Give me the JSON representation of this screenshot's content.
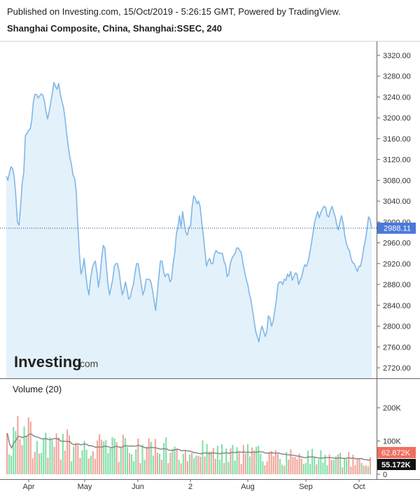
{
  "header": {
    "published_line": "Published on Investing.com, 15/Oct/2019 - 5:26:15 GMT, Powered by TradingView.",
    "symbol_line": "Shanghai Composite, China, Shanghai:SSEC, 240"
  },
  "logo": {
    "brand": "Investing",
    "suffix": ".com"
  },
  "colors": {
    "price_line": "#7fb7e8",
    "price_fill": "#e3f1fa",
    "last_price_tag": "#4a78d9",
    "volume_up": "#7ee0a8",
    "volume_down": "#f2a49a",
    "volume_ma": "#888888",
    "vol_tag_red": "#ef6f61",
    "vol_tag_black": "#111111"
  },
  "chart_data": [
    {
      "type": "area",
      "title": "Shanghai Composite, China, Shanghai:SSEC, 240",
      "x_ticks": [
        "Apr",
        "May",
        "Jun",
        "2",
        "Aug",
        "Sep",
        "Oct"
      ],
      "ylim": [
        2700,
        3340
      ],
      "y_ticks": [
        "3320.00",
        "3280.00",
        "3240.00",
        "3200.00",
        "3160.00",
        "3120.00",
        "3080.00",
        "3040.00",
        "3000.00",
        "2960.00",
        "2920.00",
        "2880.00",
        "2840.00",
        "2800.00",
        "2760.00",
        "2720.00"
      ],
      "last_price": "2988.11",
      "series": [
        {
          "values": [
            3088,
            3080,
            3095,
            3106,
            3102,
            3086,
            3050,
            3000,
            2994,
            3030,
            3075,
            3096,
            3166,
            3170,
            3176,
            3178,
            3195,
            3230,
            3245,
            3245,
            3238,
            3242,
            3246,
            3244,
            3232,
            3212,
            3198,
            3212,
            3230,
            3248,
            3268,
            3260,
            3255,
            3266,
            3245,
            3232,
            3220,
            3198,
            3170,
            3145,
            3125,
            3110,
            3090,
            3084,
            3060,
            2995,
            2940,
            2900,
            2910,
            2930,
            2900,
            2875,
            2860,
            2890,
            2910,
            2920,
            2925,
            2905,
            2875,
            2895,
            2930,
            2955,
            2950,
            2915,
            2880,
            2860,
            2875,
            2890,
            2915,
            2920,
            2920,
            2905,
            2880,
            2860,
            2870,
            2885,
            2870,
            2852,
            2855,
            2870,
            2880,
            2902,
            2920,
            2920,
            2900,
            2880,
            2860,
            2870,
            2890,
            2890,
            2890,
            2885,
            2870,
            2850,
            2830,
            2862,
            2895,
            2925,
            2925,
            2905,
            2895,
            2900,
            2900,
            2885,
            2890,
            2920,
            2940,
            2975,
            2990,
            3012,
            2990,
            3020,
            2998,
            2980,
            2975,
            2990,
            2992,
            3030,
            3050,
            3045,
            3035,
            3040,
            3030,
            3000,
            2975,
            2945,
            2915,
            2925,
            2930,
            2920,
            2920,
            2938,
            2945,
            2942,
            2940,
            2940,
            2940,
            2925,
            2918,
            2895,
            2900,
            2920,
            2930,
            2935,
            2940,
            2950,
            2950,
            2945,
            2940,
            2920,
            2905,
            2890,
            2880,
            2862,
            2850,
            2830,
            2810,
            2790,
            2780,
            2770,
            2790,
            2800,
            2790,
            2780,
            2790,
            2820,
            2815,
            2800,
            2810,
            2830,
            2850,
            2880,
            2885,
            2885,
            2880,
            2890,
            2888,
            2900,
            2895,
            2905,
            2888,
            2895,
            2902,
            2900,
            2880,
            2888,
            2895,
            2910,
            2918,
            2915,
            2925,
            2940,
            2958,
            2978,
            2998,
            3010,
            3020,
            3008,
            3018,
            3025,
            3030,
            3028,
            3012,
            3010,
            3022,
            3030,
            3020,
            3010,
            2995,
            2985,
            3000,
            3012,
            2998,
            2975,
            2960,
            2950,
            2945,
            2930,
            2922,
            2920,
            2912,
            2905,
            2915,
            2915,
            2930,
            2950,
            2965,
            2985,
            3010,
            3005,
            2988
          ]
        }
      ]
    },
    {
      "type": "bar",
      "title": "Volume (20)",
      "ylim": [
        0,
        260000
      ],
      "y_ticks": [
        "200K",
        "100K",
        "0"
      ],
      "last_volume": "55.172K",
      "last_ma": "62.872K",
      "seed": 20191015
    }
  ]
}
